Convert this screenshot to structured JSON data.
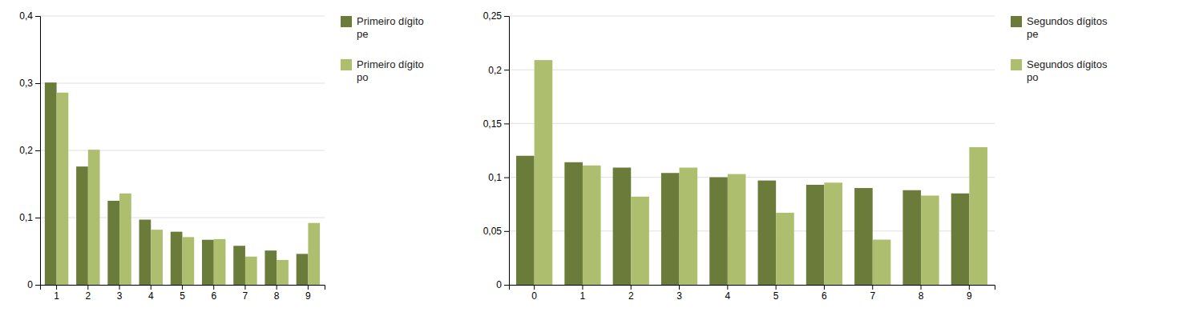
{
  "chart_data": [
    {
      "type": "bar",
      "categories": [
        1,
        2,
        3,
        4,
        5,
        6,
        7,
        8,
        9
      ],
      "series": [
        {
          "name": "Primeiro dígito\npe",
          "color": "#6B7B3A",
          "values": [
            0.301,
            0.176,
            0.125,
            0.097,
            0.079,
            0.067,
            0.058,
            0.051,
            0.046
          ]
        },
        {
          "name": "Primeiro dígito\npo",
          "color": "#ADBE6E",
          "values": [
            0.286,
            0.201,
            0.136,
            0.082,
            0.071,
            0.068,
            0.042,
            0.037,
            0.092
          ]
        }
      ],
      "ylim": [
        0,
        0.4
      ],
      "yticks": [
        0,
        {
          "value": 0.1,
          "label": "0,1"
        },
        {
          "value": 0.2,
          "label": "0,2"
        },
        {
          "value": 0.3,
          "label": "0,3"
        },
        {
          "value": 0.4,
          "label": "0,4"
        }
      ],
      "grid": true,
      "legend": "right"
    },
    {
      "type": "bar",
      "categories": [
        0,
        1,
        2,
        3,
        4,
        5,
        6,
        7,
        8,
        9
      ],
      "series": [
        {
          "name": "Segundos dígitos\npe",
          "color": "#6B7B3A",
          "values": [
            0.12,
            0.114,
            0.109,
            0.104,
            0.1,
            0.097,
            0.093,
            0.09,
            0.088,
            0.085
          ]
        },
        {
          "name": "Segundos dígitos\npo",
          "color": "#ADBE6E",
          "values": [
            0.209,
            0.111,
            0.082,
            0.109,
            0.103,
            0.067,
            0.095,
            0.042,
            0.083,
            0.128
          ]
        }
      ],
      "ylim": [
        0,
        0.25
      ],
      "yticks": [
        0,
        {
          "value": 0.05,
          "label": "0,05"
        },
        {
          "value": 0.1,
          "label": "0,1"
        },
        {
          "value": 0.15,
          "label": "0,15"
        },
        {
          "value": 0.2,
          "label": "0,2"
        },
        {
          "value": 0.25,
          "label": "0,25"
        }
      ],
      "grid": true,
      "legend": "right"
    }
  ]
}
